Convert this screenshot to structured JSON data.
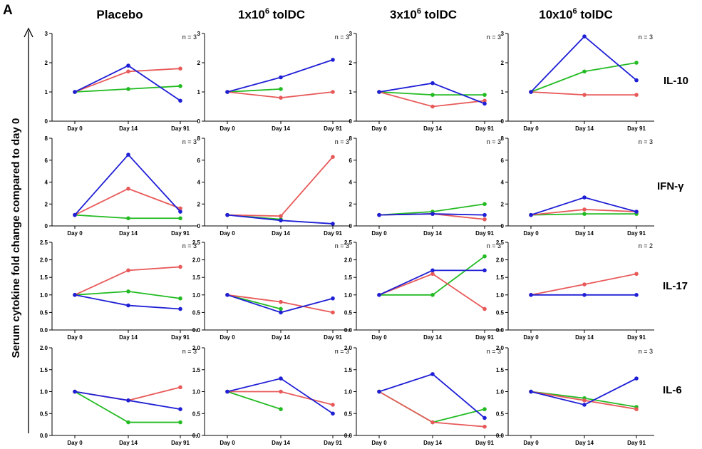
{
  "panel_letter": "A",
  "ylabel": "Serum cytokine fold change compared to day 0",
  "colors": {
    "blue": "#1f1fd6",
    "red": "#e85a5a",
    "green": "#22bb22",
    "axis": "#000000"
  },
  "chart_data": [
    {
      "type": "line",
      "group": "Placebo",
      "cytokine": "IL-10",
      "annotation": "n = 3",
      "categories": [
        "Day 0",
        "Day 14",
        "Day 91"
      ],
      "ylim": [
        0,
        3
      ],
      "yticks": [
        "0",
        "1",
        "2",
        "3"
      ],
      "series": [
        {
          "color": "blue",
          "values": [
            1,
            1.9,
            0.7
          ]
        },
        {
          "color": "red",
          "values": [
            1,
            1.7,
            1.8
          ]
        },
        {
          "color": "green",
          "values": [
            1,
            1.1,
            1.2
          ]
        }
      ]
    },
    {
      "type": "line",
      "group": "1x10^6 tolDC",
      "cytokine": "IL-10",
      "annotation": "n = 3",
      "categories": [
        "Day 0",
        "Day 14",
        "Day 91"
      ],
      "ylim": [
        0,
        3
      ],
      "yticks": [
        "0",
        "1",
        "2",
        "3"
      ],
      "series": [
        {
          "color": "blue",
          "values": [
            1,
            1.5,
            2.1
          ]
        },
        {
          "color": "red",
          "values": [
            1,
            0.8,
            1.0
          ]
        },
        {
          "color": "green",
          "values": [
            1,
            1.1,
            null
          ]
        }
      ]
    },
    {
      "type": "line",
      "group": "3x10^6 tolDC",
      "cytokine": "IL-10",
      "annotation": "n = 3",
      "categories": [
        "Day 0",
        "Day 14",
        "Day 91"
      ],
      "ylim": [
        0,
        3
      ],
      "yticks": [
        "0",
        "1",
        "2",
        "3"
      ],
      "series": [
        {
          "color": "blue",
          "values": [
            1,
            1.3,
            0.6
          ]
        },
        {
          "color": "red",
          "values": [
            1,
            0.5,
            0.7
          ]
        },
        {
          "color": "green",
          "values": [
            1,
            0.9,
            0.9
          ]
        }
      ]
    },
    {
      "type": "line",
      "group": "10x10^6 tolDC",
      "cytokine": "IL-10",
      "annotation": "n = 3",
      "categories": [
        "Day 0",
        "Day 14",
        "Day 91"
      ],
      "ylim": [
        0,
        3
      ],
      "yticks": [
        "0",
        "1",
        "2",
        "3"
      ],
      "series": [
        {
          "color": "blue",
          "values": [
            1,
            2.9,
            1.4
          ]
        },
        {
          "color": "red",
          "values": [
            1,
            0.9,
            0.9
          ]
        },
        {
          "color": "green",
          "values": [
            1,
            1.7,
            2.0
          ]
        }
      ]
    },
    {
      "type": "line",
      "group": "Placebo",
      "cytokine": "IFN-γ",
      "annotation": "n = 3",
      "categories": [
        "Day 0",
        "Day 14",
        "Day 91"
      ],
      "ylim": [
        0,
        8
      ],
      "yticks": [
        "0",
        "2",
        "4",
        "6",
        "8"
      ],
      "series": [
        {
          "color": "blue",
          "values": [
            1,
            6.5,
            1.3
          ]
        },
        {
          "color": "red",
          "values": [
            1,
            3.4,
            1.6
          ]
        },
        {
          "color": "green",
          "values": [
            1,
            0.7,
            0.7
          ]
        }
      ]
    },
    {
      "type": "line",
      "group": "1x10^6 tolDC",
      "cytokine": "IFN-γ",
      "annotation": "n = 3",
      "categories": [
        "Day 0",
        "Day 14",
        "Day 91"
      ],
      "ylim": [
        0,
        8
      ],
      "yticks": [
        "0",
        "2",
        "4",
        "6",
        "8"
      ],
      "series": [
        {
          "color": "blue",
          "values": [
            1,
            0.5,
            0.2
          ]
        },
        {
          "color": "red",
          "values": [
            1,
            0.9,
            6.3
          ]
        },
        {
          "color": "green",
          "values": [
            1,
            0.6,
            null
          ]
        }
      ]
    },
    {
      "type": "line",
      "group": "3x10^6 tolDC",
      "cytokine": "IFN-γ",
      "annotation": "n = 3",
      "categories": [
        "Day 0",
        "Day 14",
        "Day 91"
      ],
      "ylim": [
        0,
        8
      ],
      "yticks": [
        "0",
        "2",
        "4",
        "6",
        "8"
      ],
      "series": [
        {
          "color": "blue",
          "values": [
            1,
            1.1,
            1.0
          ]
        },
        {
          "color": "red",
          "values": [
            1,
            1.1,
            0.6
          ]
        },
        {
          "color": "green",
          "values": [
            1,
            1.3,
            2.0
          ]
        }
      ]
    },
    {
      "type": "line",
      "group": "10x10^6 tolDC",
      "cytokine": "IFN-γ",
      "annotation": "n = 3",
      "categories": [
        "Day 0",
        "Day 14",
        "Day 91"
      ],
      "ylim": [
        0,
        8
      ],
      "yticks": [
        "0",
        "2",
        "4",
        "6",
        "8"
      ],
      "series": [
        {
          "color": "blue",
          "values": [
            1,
            2.6,
            1.3
          ]
        },
        {
          "color": "red",
          "values": [
            1,
            1.5,
            1.3
          ]
        },
        {
          "color": "green",
          "values": [
            1,
            1.1,
            1.1
          ]
        }
      ]
    },
    {
      "type": "line",
      "group": "Placebo",
      "cytokine": "IL-17",
      "annotation": "n = 3",
      "categories": [
        "Day 0",
        "Day 14",
        "Day 91"
      ],
      "ylim": [
        0,
        2.5
      ],
      "yticks": [
        "0.0",
        "0.5",
        "1.0",
        "1.5",
        "2.0",
        "2.5"
      ],
      "series": [
        {
          "color": "blue",
          "values": [
            1,
            0.7,
            0.6
          ]
        },
        {
          "color": "red",
          "values": [
            1,
            1.7,
            1.8
          ]
        },
        {
          "color": "green",
          "values": [
            1,
            1.1,
            0.9
          ]
        }
      ]
    },
    {
      "type": "line",
      "group": "1x10^6 tolDC",
      "cytokine": "IL-17",
      "annotation": "n = 3",
      "categories": [
        "Day 0",
        "Day 14",
        "Day 91"
      ],
      "ylim": [
        0,
        2.5
      ],
      "yticks": [
        "0.0",
        "0.5",
        "1.0",
        "1.5",
        "2.0",
        "2.5"
      ],
      "series": [
        {
          "color": "blue",
          "values": [
            1,
            0.5,
            0.9
          ]
        },
        {
          "color": "red",
          "values": [
            1,
            0.8,
            0.5
          ]
        },
        {
          "color": "green",
          "values": [
            1,
            0.6,
            null
          ]
        }
      ]
    },
    {
      "type": "line",
      "group": "3x10^6 tolDC",
      "cytokine": "IL-17",
      "annotation": "n = 3",
      "categories": [
        "Day 0",
        "Day 14",
        "Day 91"
      ],
      "ylim": [
        0,
        2.5
      ],
      "yticks": [
        "0.0",
        "0.5",
        "1.0",
        "1.5",
        "2.0",
        "2.5"
      ],
      "series": [
        {
          "color": "blue",
          "values": [
            1,
            1.7,
            1.7
          ]
        },
        {
          "color": "red",
          "values": [
            1,
            1.6,
            0.6
          ]
        },
        {
          "color": "green",
          "values": [
            1,
            1.0,
            2.1
          ]
        }
      ]
    },
    {
      "type": "line",
      "group": "10x10^6 tolDC",
      "cytokine": "IL-17",
      "annotation": "n = 2",
      "categories": [
        "Day 0",
        "Day 14",
        "Day 91"
      ],
      "ylim": [
        0,
        2.5
      ],
      "yticks": [
        "0.0",
        "0.5",
        "1.0",
        "1.5",
        "2.0",
        "2.5"
      ],
      "series": [
        {
          "color": "blue",
          "values": [
            1,
            1.0,
            1.0
          ]
        },
        {
          "color": "red",
          "values": [
            1,
            1.3,
            1.6
          ]
        }
      ]
    },
    {
      "type": "line",
      "group": "Placebo",
      "cytokine": "IL-6",
      "annotation": "n = 3",
      "categories": [
        "Day 0",
        "Day 14",
        "Day 91"
      ],
      "ylim": [
        0,
        2.0
      ],
      "yticks": [
        "0.0",
        "0.5",
        "1.0",
        "1.5",
        "2.0"
      ],
      "series": [
        {
          "color": "blue",
          "values": [
            1,
            0.8,
            0.6
          ]
        },
        {
          "color": "red",
          "values": [
            1,
            0.8,
            1.1
          ]
        },
        {
          "color": "green",
          "values": [
            1,
            0.3,
            0.3
          ]
        }
      ]
    },
    {
      "type": "line",
      "group": "1x10^6 tolDC",
      "cytokine": "IL-6",
      "annotation": "n = 3",
      "categories": [
        "Day 0",
        "Day 14",
        "Day 91"
      ],
      "ylim": [
        0,
        2.0
      ],
      "yticks": [
        "0.0",
        "0.5",
        "1.0",
        "1.5",
        "2.0"
      ],
      "series": [
        {
          "color": "blue",
          "values": [
            1,
            1.3,
            0.5
          ]
        },
        {
          "color": "red",
          "values": [
            1,
            1.0,
            0.7
          ]
        },
        {
          "color": "green",
          "values": [
            1,
            0.6,
            null
          ]
        }
      ]
    },
    {
      "type": "line",
      "group": "3x10^6 tolDC",
      "cytokine": "IL-6",
      "annotation": "n = 3",
      "categories": [
        "Day 0",
        "Day 14",
        "Day 91"
      ],
      "ylim": [
        0,
        2.0
      ],
      "yticks": [
        "0.0",
        "0.5",
        "1.0",
        "1.5",
        "2.0"
      ],
      "series": [
        {
          "color": "blue",
          "values": [
            1,
            1.4,
            0.4
          ]
        },
        {
          "color": "red",
          "values": [
            1,
            0.3,
            0.2
          ]
        },
        {
          "color": "green",
          "values": [
            1,
            0.3,
            0.6
          ]
        }
      ]
    },
    {
      "type": "line",
      "group": "10x10^6 tolDC",
      "cytokine": "IL-6",
      "annotation": "n = 3",
      "categories": [
        "Day 0",
        "Day 14",
        "Day 91"
      ],
      "ylim": [
        0,
        2.0
      ],
      "yticks": [
        "0.0",
        "0.5",
        "1.0",
        "1.5",
        "2.0"
      ],
      "series": [
        {
          "color": "blue",
          "values": [
            1,
            0.7,
            1.3
          ]
        },
        {
          "color": "red",
          "values": [
            1,
            0.8,
            0.6
          ]
        },
        {
          "color": "green",
          "values": [
            1,
            0.85,
            0.65
          ]
        }
      ]
    }
  ]
}
